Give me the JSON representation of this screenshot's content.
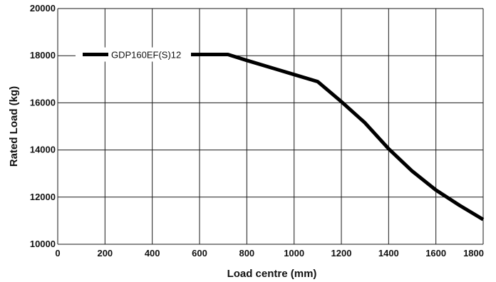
{
  "chart_data": {
    "type": "line",
    "xlabel": "Load centre (mm)",
    "ylabel": "Rated Load (kg)",
    "xlim": [
      0,
      1800
    ],
    "ylim": [
      10000,
      20000
    ],
    "x_ticks": [
      0,
      200,
      400,
      600,
      800,
      1000,
      1200,
      1400,
      1600,
      1800
    ],
    "y_ticks": [
      10000,
      12000,
      14000,
      16000,
      18000,
      20000
    ],
    "x_tick_labels": [
      "0",
      "200",
      "400",
      "600",
      "800",
      "1000",
      "1200",
      "1400",
      "1600",
      "1800"
    ],
    "y_tick_labels": [
      "10000",
      "12000",
      "14000",
      "16000",
      "18000",
      "20000"
    ],
    "grid": true,
    "legend_position": "top-left",
    "series": [
      {
        "name": "GDP160EF(S)12",
        "color": "#000000",
        "x": [
          600,
          720,
          800,
          900,
          1000,
          1100,
          1200,
          1300,
          1400,
          1500,
          1600,
          1700,
          1800
        ],
        "y": [
          18050,
          18050,
          17800,
          17500,
          17200,
          16900,
          16050,
          15150,
          14050,
          13100,
          12300,
          11650,
          11050
        ]
      }
    ]
  }
}
